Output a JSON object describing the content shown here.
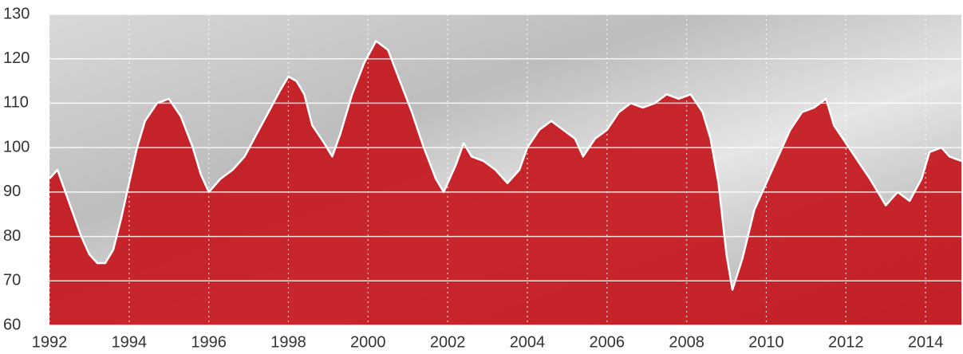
{
  "chart_data": {
    "type": "area",
    "x": [
      1992.0,
      1992.2,
      1992.4,
      1992.6,
      1992.8,
      1993.0,
      1993.2,
      1993.4,
      1993.6,
      1993.8,
      1994.0,
      1994.2,
      1994.4,
      1994.7,
      1995.0,
      1995.3,
      1995.6,
      1995.8,
      1996.0,
      1996.3,
      1996.6,
      1996.9,
      1997.2,
      1997.5,
      1997.8,
      1998.0,
      1998.2,
      1998.4,
      1998.6,
      1998.9,
      1999.1,
      1999.3,
      1999.6,
      1999.9,
      2000.2,
      2000.5,
      2000.8,
      2001.1,
      2001.4,
      2001.7,
      2001.9,
      2002.2,
      2002.4,
      2002.6,
      2002.9,
      2003.2,
      2003.5,
      2003.8,
      2004.0,
      2004.3,
      2004.6,
      2004.9,
      2005.2,
      2005.4,
      2005.7,
      2006.0,
      2006.3,
      2006.6,
      2006.9,
      2007.2,
      2007.5,
      2007.8,
      2008.1,
      2008.4,
      2008.6,
      2008.8,
      2009.0,
      2009.15,
      2009.4,
      2009.7,
      2010.0,
      2010.3,
      2010.6,
      2010.9,
      2011.2,
      2011.5,
      2011.7,
      2012.0,
      2012.3,
      2012.6,
      2012.8,
      2013.0,
      2013.3,
      2013.6,
      2013.9,
      2014.1,
      2014.4,
      2014.6,
      2014.9
    ],
    "values": [
      93,
      95,
      90,
      85,
      80,
      76,
      74,
      74,
      77,
      84,
      92,
      100,
      106,
      110,
      111,
      107,
      100,
      94,
      90,
      93,
      95,
      98,
      103,
      108,
      113,
      116,
      115,
      112,
      105,
      101,
      98,
      103,
      112,
      119,
      124,
      122,
      115,
      108,
      100,
      93,
      90,
      96,
      101,
      98,
      97,
      95,
      92,
      95,
      100,
      104,
      106,
      104,
      102,
      98,
      102,
      104,
      108,
      110,
      109,
      110,
      112,
      111,
      112,
      108,
      102,
      92,
      76,
      68,
      75,
      86,
      92,
      98,
      104,
      108,
      109,
      111,
      105,
      101,
      97,
      93,
      90,
      87,
      90,
      88,
      93,
      99,
      100,
      98,
      97
    ],
    "color": "#c4161c",
    "line_color": "#ffffff",
    "xlim": [
      1992,
      2014.9
    ],
    "xticks": [
      1992,
      1994,
      1996,
      1998,
      2000,
      2002,
      2004,
      2006,
      2008,
      2010,
      2012,
      2014
    ],
    "ylim": [
      60,
      130
    ],
    "yticks": [
      60,
      70,
      80,
      90,
      100,
      110,
      120,
      130
    ],
    "grid": true
  }
}
